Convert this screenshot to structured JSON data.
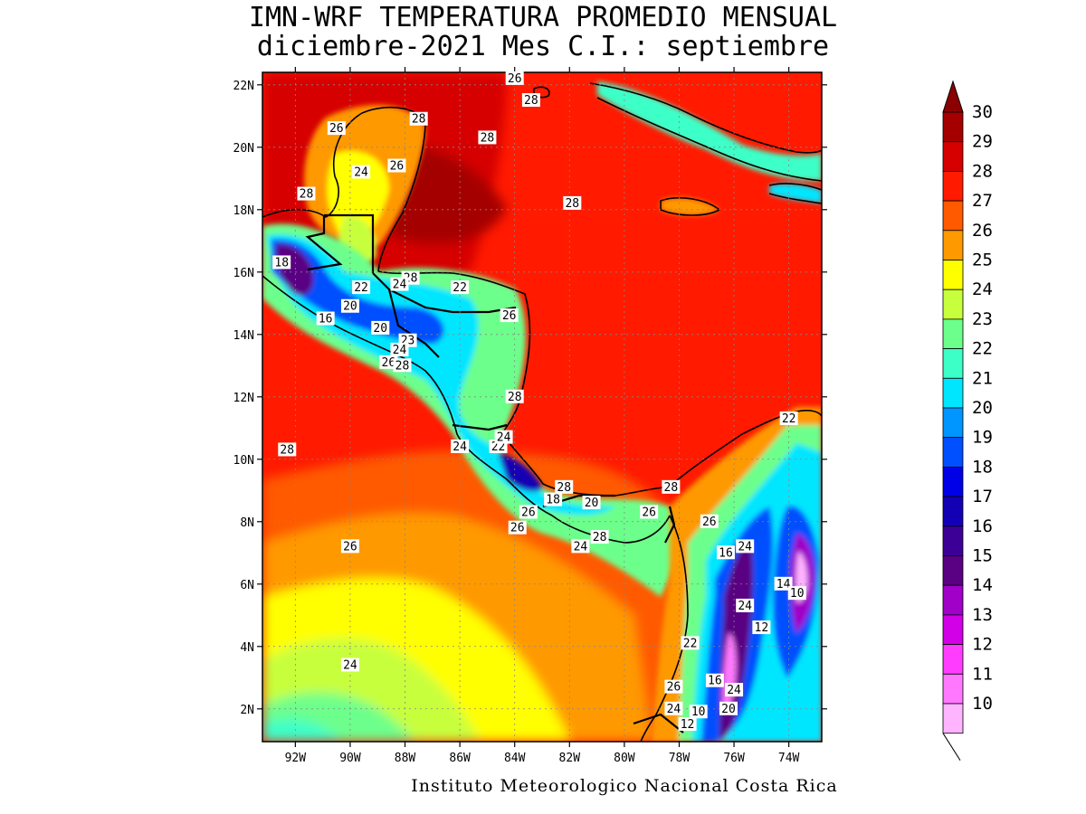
{
  "title": {
    "line1": "IMN-WRF  TEMPERATURA PROMEDIO MENSUAL",
    "line2": "diciembre-2021 Mes C.I.: septiembre"
  },
  "credit": "Instituto Meteorologico Nacional Costa Rica",
  "axes": {
    "lat_ticks": [
      "22N",
      "20N",
      "18N",
      "16N",
      "14N",
      "12N",
      "10N",
      "8N",
      "6N",
      "4N",
      "2N"
    ],
    "lon_ticks": [
      "92W",
      "90W",
      "88W",
      "86W",
      "84W",
      "82W",
      "80W",
      "78W",
      "76W",
      "74W"
    ]
  },
  "colorbar": {
    "levels": [
      "30",
      "29",
      "28",
      "27",
      "26",
      "25",
      "24",
      "23",
      "22",
      "21",
      "20",
      "19",
      "18",
      "17",
      "16",
      "15",
      "14",
      "13",
      "12",
      "11",
      "10"
    ],
    "colors": [
      "#a50000",
      "#d60000",
      "#ff1a00",
      "#ff5a00",
      "#ff9900",
      "#ffff00",
      "#c8ff3c",
      "#6dff8c",
      "#3cffc8",
      "#00e6ff",
      "#0096ff",
      "#0050ff",
      "#0000e6",
      "#1400b4",
      "#3c0096",
      "#5a0082",
      "#a000c8",
      "#d200e6",
      "#ff3cff",
      "#ff78ff",
      "#ffb4ff"
    ]
  },
  "contour_labels": [
    {
      "text": "26",
      "lon": -84.0,
      "lat": 22.2
    },
    {
      "text": "28",
      "lon": -83.4,
      "lat": 21.5
    },
    {
      "text": "28",
      "lon": -87.5,
      "lat": 20.9
    },
    {
      "text": "26",
      "lon": -90.5,
      "lat": 20.6
    },
    {
      "text": "28",
      "lon": -85.0,
      "lat": 20.3
    },
    {
      "text": "26",
      "lon": -88.3,
      "lat": 19.4
    },
    {
      "text": "24",
      "lon": -89.6,
      "lat": 19.2
    },
    {
      "text": "28",
      "lon": -91.6,
      "lat": 18.5
    },
    {
      "text": "28",
      "lon": -81.9,
      "lat": 18.2
    },
    {
      "text": "18",
      "lon": -92.5,
      "lat": 16.3
    },
    {
      "text": "22",
      "lon": -89.6,
      "lat": 15.5
    },
    {
      "text": "28",
      "lon": -87.8,
      "lat": 15.8
    },
    {
      "text": "24",
      "lon": -88.2,
      "lat": 15.6
    },
    {
      "text": "22",
      "lon": -86.0,
      "lat": 15.5
    },
    {
      "text": "20",
      "lon": -90.0,
      "lat": 14.9
    },
    {
      "text": "16",
      "lon": -90.9,
      "lat": 14.5
    },
    {
      "text": "26",
      "lon": -84.2,
      "lat": 14.6
    },
    {
      "text": "20",
      "lon": -88.9,
      "lat": 14.2
    },
    {
      "text": "23",
      "lon": -87.9,
      "lat": 13.8
    },
    {
      "text": "24",
      "lon": -88.2,
      "lat": 13.5
    },
    {
      "text": "26",
      "lon": -88.6,
      "lat": 13.1
    },
    {
      "text": "28",
      "lon": -88.1,
      "lat": 13.0
    },
    {
      "text": "28",
      "lon": -84.0,
      "lat": 12.0
    },
    {
      "text": "22",
      "lon": -74.0,
      "lat": 11.3
    },
    {
      "text": "28",
      "lon": -92.3,
      "lat": 10.3
    },
    {
      "text": "24",
      "lon": -86.0,
      "lat": 10.4
    },
    {
      "text": "22",
      "lon": -84.6,
      "lat": 10.4
    },
    {
      "text": "24",
      "lon": -84.4,
      "lat": 10.7
    },
    {
      "text": "28",
      "lon": -82.2,
      "lat": 9.1
    },
    {
      "text": "28",
      "lon": -78.3,
      "lat": 9.1
    },
    {
      "text": "18",
      "lon": -82.6,
      "lat": 8.7
    },
    {
      "text": "20",
      "lon": -81.2,
      "lat": 8.6
    },
    {
      "text": "26",
      "lon": -83.5,
      "lat": 8.3
    },
    {
      "text": "26",
      "lon": -79.1,
      "lat": 8.3
    },
    {
      "text": "26",
      "lon": -76.9,
      "lat": 8.0
    },
    {
      "text": "26",
      "lon": -83.9,
      "lat": 7.8
    },
    {
      "text": "24",
      "lon": -81.6,
      "lat": 7.2
    },
    {
      "text": "28",
      "lon": -80.9,
      "lat": 7.5
    },
    {
      "text": "26",
      "lon": -90.0,
      "lat": 7.2
    },
    {
      "text": "16",
      "lon": -76.3,
      "lat": 7.0
    },
    {
      "text": "24",
      "lon": -75.6,
      "lat": 7.2
    },
    {
      "text": "14",
      "lon": -74.2,
      "lat": 6.0
    },
    {
      "text": "10",
      "lon": -73.7,
      "lat": 5.7
    },
    {
      "text": "24",
      "lon": -75.6,
      "lat": 5.3
    },
    {
      "text": "12",
      "lon": -75.0,
      "lat": 4.6
    },
    {
      "text": "22",
      "lon": -77.6,
      "lat": 4.1
    },
    {
      "text": "24",
      "lon": -90.0,
      "lat": 3.4
    },
    {
      "text": "16",
      "lon": -76.7,
      "lat": 2.9
    },
    {
      "text": "26",
      "lon": -78.2,
      "lat": 2.7
    },
    {
      "text": "24",
      "lon": -76.0,
      "lat": 2.6
    },
    {
      "text": "24",
      "lon": -78.2,
      "lat": 2.0
    },
    {
      "text": "10",
      "lon": -77.3,
      "lat": 1.9
    },
    {
      "text": "12",
      "lon": -77.7,
      "lat": 1.5
    },
    {
      "text": "20",
      "lon": -76.2,
      "lat": 2.0
    }
  ]
}
